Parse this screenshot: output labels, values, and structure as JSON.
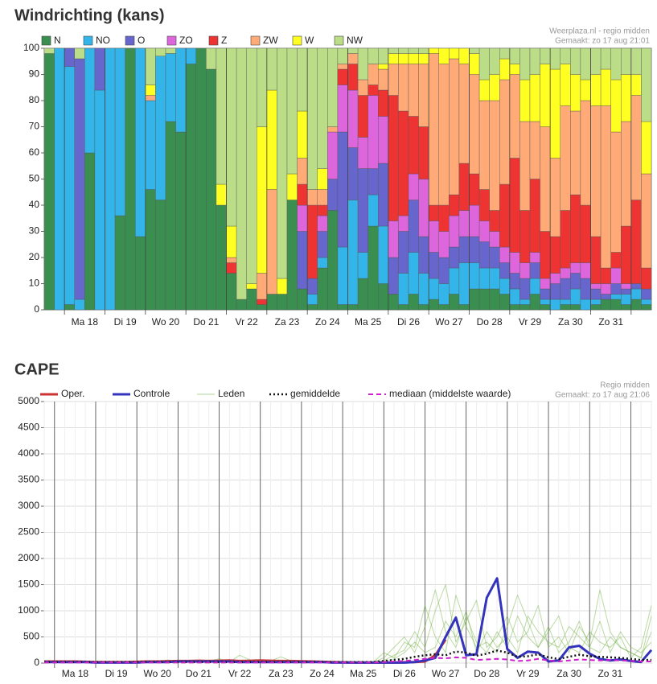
{
  "chart_data": [
    {
      "type": "bar",
      "stacked": true,
      "title": "Windrichting (kans)",
      "subtitle": "Weerplaza.nl - regio midden",
      "note": "Gemaakt: zo 17 aug 21:01",
      "day_labels": [
        "Ma 18",
        "Di 19",
        "Wo 20",
        "Do 21",
        "Vr 22",
        "Za 23",
        "Zo 24",
        "Ma 25",
        "Di 26",
        "Wo 27",
        "Do 28",
        "Vr 29",
        "Za 30",
        "Zo 31"
      ],
      "ylim": [
        0,
        100
      ],
      "yticks": [
        0,
        10,
        20,
        30,
        40,
        50,
        60,
        70,
        80,
        90,
        100
      ],
      "series": [
        {
          "name": "N",
          "color": "#3a8f50",
          "values": [
            98,
            0,
            2,
            0,
            60,
            0,
            0,
            36,
            100,
            28,
            46,
            42,
            72,
            68,
            94,
            100,
            92,
            40,
            14,
            4,
            8,
            2,
            6,
            6,
            42,
            8,
            2,
            16,
            38,
            2,
            2,
            12,
            32,
            10,
            6,
            2,
            6,
            2,
            4,
            2,
            6,
            2,
            8,
            8,
            8,
            6,
            2,
            2,
            6,
            2,
            0,
            2,
            2,
            0,
            2,
            4,
            4,
            2,
            4,
            2
          ]
        },
        {
          "name": "NO",
          "color": "#33b5ea",
          "values": [
            0,
            100,
            91,
            4,
            40,
            84,
            100,
            64,
            0,
            72,
            34,
            55,
            26,
            32,
            6,
            0,
            0,
            0,
            0,
            0,
            0,
            0,
            0,
            0,
            0,
            0,
            4,
            4,
            0,
            22,
            40,
            10,
            12,
            22,
            0,
            12,
            16,
            12,
            8,
            8,
            10,
            16,
            10,
            8,
            8,
            6,
            6,
            2,
            6,
            2,
            4,
            2,
            6,
            4,
            2,
            0,
            2,
            4,
            4,
            2
          ]
        },
        {
          "name": "O",
          "color": "#6666cc",
          "values": [
            0,
            0,
            7,
            92,
            0,
            16,
            0,
            0,
            0,
            0,
            0,
            0,
            0,
            0,
            0,
            0,
            0,
            0,
            0,
            0,
            0,
            0,
            0,
            0,
            0,
            22,
            6,
            10,
            12,
            44,
            20,
            32,
            10,
            24,
            14,
            16,
            20,
            14,
            10,
            10,
            8,
            10,
            10,
            10,
            8,
            6,
            6,
            8,
            6,
            4,
            6,
            8,
            6,
            8,
            4,
            2,
            4,
            2,
            2,
            4
          ]
        },
        {
          "name": "ZO",
          "color": "#dd66dd",
          "values": [
            0,
            0,
            0,
            0,
            0,
            0,
            0,
            0,
            0,
            0,
            0,
            0,
            0,
            0,
            0,
            0,
            0,
            0,
            0,
            0,
            0,
            0,
            0,
            0,
            0,
            10,
            0,
            6,
            18,
            18,
            22,
            12,
            28,
            18,
            14,
            6,
            10,
            22,
            12,
            10,
            12,
            10,
            12,
            8,
            6,
            6,
            8,
            6,
            4,
            4,
            4,
            4,
            4,
            6,
            2,
            4,
            6,
            2,
            0,
            0
          ]
        },
        {
          "name": "Z",
          "color": "#ee3333",
          "values": [
            0,
            0,
            0,
            0,
            0,
            0,
            0,
            0,
            0,
            0,
            0,
            0,
            0,
            0,
            0,
            0,
            0,
            0,
            4,
            0,
            0,
            2,
            0,
            0,
            0,
            8,
            28,
            4,
            0,
            6,
            10,
            16,
            4,
            10,
            48,
            40,
            22,
            20,
            6,
            10,
            8,
            18,
            12,
            12,
            8,
            24,
            36,
            20,
            28,
            18,
            14,
            22,
            26,
            22,
            18,
            6,
            6,
            22,
            32,
            8
          ]
        },
        {
          "name": "ZW",
          "color": "#ffaa77",
          "values": [
            0,
            0,
            0,
            0,
            0,
            0,
            0,
            0,
            0,
            0,
            2,
            0,
            0,
            0,
            0,
            0,
            0,
            0,
            2,
            0,
            0,
            10,
            40,
            0,
            0,
            10,
            6,
            6,
            2,
            2,
            4,
            6,
            8,
            8,
            12,
            18,
            20,
            24,
            58,
            54,
            52,
            38,
            38,
            34,
            42,
            40,
            32,
            34,
            22,
            40,
            30,
            40,
            32,
            40,
            50,
            62,
            46,
            40,
            40,
            36
          ]
        },
        {
          "name": "W",
          "color": "#ffff22",
          "values": [
            0,
            0,
            0,
            0,
            0,
            0,
            0,
            0,
            0,
            0,
            4,
            0,
            0,
            0,
            0,
            0,
            0,
            8,
            12,
            0,
            2,
            56,
            38,
            6,
            10,
            18,
            0,
            8,
            0,
            0,
            0,
            0,
            0,
            2,
            4,
            4,
            4,
            4,
            2,
            6,
            4,
            6,
            8,
            8,
            10,
            8,
            4,
            16,
            18,
            24,
            34,
            16,
            14,
            8,
            12,
            14,
            20,
            18,
            8,
            20
          ]
        },
        {
          "name": "NW",
          "color": "#bbdd88",
          "values": [
            2,
            0,
            0,
            4,
            0,
            0,
            0,
            0,
            0,
            0,
            14,
            3,
            2,
            0,
            0,
            0,
            8,
            52,
            68,
            96,
            90,
            30,
            16,
            88,
            48,
            24,
            54,
            46,
            30,
            6,
            2,
            12,
            6,
            6,
            2,
            2,
            2,
            2,
            0,
            0,
            0,
            0,
            2,
            12,
            10,
            4,
            6,
            12,
            10,
            6,
            8,
            6,
            10,
            12,
            10,
            8,
            12,
            10,
            10,
            28
          ]
        }
      ]
    },
    {
      "type": "line",
      "title": "CAPE",
      "subtitle": "Regio midden",
      "note": "Gemaakt: zo 17 aug 21:06",
      "day_labels": [
        "Ma 18",
        "Di 19",
        "Wo 20",
        "Do 21",
        "Vr 22",
        "Za 23",
        "Zo 24",
        "Ma 25",
        "Di 26",
        "Wo 27",
        "Do 28",
        "Vr 29",
        "Za 30",
        "Zo 31"
      ],
      "ylim": [
        0,
        5000
      ],
      "yticks": [
        0,
        500,
        1000,
        1500,
        2000,
        2500,
        3000,
        3500,
        4000,
        4500,
        5000
      ],
      "grid": true,
      "series": [
        {
          "name": "Oper.",
          "color": "#cc3333",
          "width": 3,
          "values": [
            30,
            30,
            30,
            30,
            25,
            20,
            20,
            20,
            20,
            25,
            30,
            30,
            35,
            40,
            40,
            45,
            40,
            45,
            50,
            40,
            45,
            50,
            45,
            40,
            40,
            35,
            30,
            25,
            20,
            15,
            10,
            10,
            10,
            10,
            10,
            15,
            20,
            30,
            150,
            450,
            null,
            null,
            null,
            null,
            null,
            null,
            null,
            null,
            null,
            null,
            null,
            null,
            null,
            null,
            null,
            null,
            null,
            null,
            null,
            null
          ]
        },
        {
          "name": "Controle",
          "color": "#3333bb",
          "width": 3,
          "values": [
            20,
            20,
            20,
            20,
            20,
            10,
            10,
            10,
            10,
            10,
            20,
            20,
            20,
            30,
            30,
            30,
            30,
            30,
            30,
            20,
            20,
            20,
            20,
            20,
            20,
            20,
            20,
            20,
            10,
            10,
            10,
            10,
            10,
            10,
            10,
            10,
            20,
            50,
            100,
            500,
            870,
            150,
            170,
            1250,
            1620,
            270,
            100,
            220,
            200,
            30,
            50,
            300,
            330,
            180,
            80,
            50,
            70,
            40,
            20,
            250
          ]
        },
        {
          "name": "Leden",
          "color": "#66aa33",
          "width": 1,
          "members": [
            [
              10,
              10,
              10,
              10,
              10,
              10,
              10,
              20,
              20,
              30,
              30,
              40,
              50,
              40,
              30,
              60,
              40,
              30,
              20,
              150,
              60,
              40,
              30,
              20,
              20,
              10,
              10,
              10,
              10,
              10,
              10,
              10,
              20,
              100,
              300,
              500,
              200,
              700,
              1400,
              600,
              300,
              900,
              400,
              200,
              600,
              300,
              900,
              500,
              300,
              700,
              200,
              400,
              800,
              300,
              200,
              500,
              300,
              200,
              100,
              600
            ],
            [
              20,
              20,
              20,
              20,
              20,
              20,
              20,
              20,
              30,
              30,
              30,
              30,
              40,
              40,
              40,
              40,
              50,
              40,
              40,
              40,
              30,
              30,
              30,
              20,
              20,
              20,
              20,
              20,
              20,
              20,
              20,
              20,
              20,
              50,
              150,
              250,
              600,
              300,
              1000,
              1500,
              400,
              800,
              1200,
              300,
              500,
              900,
              400,
              600,
              1100,
              300,
              500,
              200,
              700,
              400,
              1400,
              600,
              300,
              200,
              100,
              900
            ],
            [
              30,
              30,
              20,
              20,
              20,
              20,
              20,
              20,
              20,
              20,
              40,
              40,
              60,
              40,
              40,
              40,
              40,
              80,
              40,
              40,
              40,
              40,
              40,
              120,
              40,
              30,
              20,
              20,
              20,
              20,
              20,
              20,
              20,
              200,
              100,
              400,
              300,
              1100,
              500,
              200,
              1300,
              700,
              300,
              400,
              200,
              700,
              1300,
              800,
              300,
              600,
              900,
              300,
              200,
              600,
              400,
              300,
              500,
              100,
              300,
              1100
            ],
            [
              20,
              20,
              20,
              20,
              10,
              10,
              10,
              10,
              10,
              10,
              30,
              30,
              30,
              30,
              30,
              30,
              60,
              30,
              30,
              30,
              40,
              40,
              40,
              40,
              30,
              30,
              30,
              30,
              30,
              30,
              30,
              30,
              30,
              30,
              80,
              200,
              400,
              200,
              300,
              800,
              500,
              1000,
              200,
              600,
              300,
              500,
              200,
              900,
              600,
              400,
              300,
              700,
              500,
              300,
              800,
              200,
              600,
              300,
              200,
              400
            ]
          ]
        },
        {
          "name": "gemiddelde",
          "color": "#111111",
          "width": 2.5,
          "dash": "2 3",
          "values": [
            20,
            20,
            20,
            20,
            20,
            20,
            20,
            20,
            20,
            20,
            20,
            20,
            20,
            20,
            20,
            20,
            20,
            20,
            20,
            20,
            20,
            20,
            20,
            20,
            20,
            20,
            20,
            20,
            20,
            20,
            20,
            20,
            20,
            40,
            60,
            80,
            120,
            150,
            170,
            150,
            220,
            200,
            140,
            180,
            240,
            200,
            120,
            130,
            170,
            110,
            80,
            120,
            160,
            130,
            120,
            110,
            100,
            80,
            60,
            60
          ]
        },
        {
          "name": "mediaan (middelste waarde)",
          "color": "#cc22cc",
          "width": 2,
          "dash": "6 4",
          "values": [
            10,
            10,
            10,
            10,
            10,
            10,
            10,
            10,
            10,
            10,
            10,
            10,
            10,
            10,
            10,
            10,
            10,
            10,
            10,
            10,
            10,
            10,
            10,
            10,
            10,
            10,
            10,
            10,
            10,
            10,
            10,
            10,
            10,
            20,
            30,
            40,
            60,
            80,
            100,
            90,
            110,
            100,
            60,
            70,
            80,
            70,
            40,
            50,
            80,
            50,
            30,
            50,
            70,
            60,
            50,
            60,
            50,
            40,
            30,
            30
          ]
        }
      ]
    }
  ]
}
